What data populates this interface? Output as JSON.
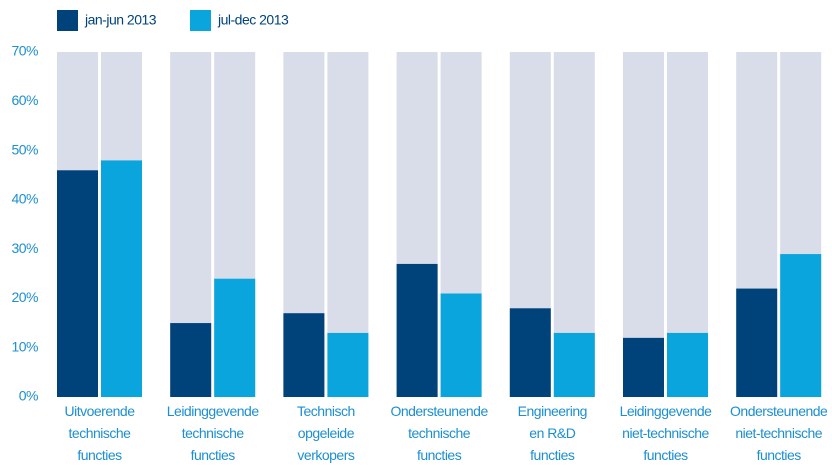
{
  "chart_data": {
    "type": "bar",
    "categories": [
      [
        "Uitvoerende",
        "technische",
        "functies"
      ],
      [
        "Leidinggevende",
        "technische",
        "functies"
      ],
      [
        "Technisch",
        "opgeleide",
        "verkopers"
      ],
      [
        "Ondersteunende",
        "technische",
        "functies"
      ],
      [
        "Engineering",
        "en R&D",
        "functies"
      ],
      [
        "Leidinggevende",
        "niet-technische",
        "functies"
      ],
      [
        "Ondersteunende",
        "niet-technische",
        "functies"
      ]
    ],
    "series": [
      {
        "name": "jan-jun 2013",
        "color": "#00427a",
        "values": [
          46,
          15,
          17,
          27,
          18,
          12,
          22
        ]
      },
      {
        "name": "jul-dec 2013",
        "color": "#0ba5de",
        "values": [
          48,
          24,
          13,
          21,
          13,
          13,
          29
        ]
      }
    ],
    "background_color": "#d9dce9",
    "ylim": [
      0,
      70
    ],
    "yticks": [
      {
        "value": 0,
        "label": "0%"
      },
      {
        "value": 10,
        "label": "10%"
      },
      {
        "value": 20,
        "label": "20%"
      },
      {
        "value": 30,
        "label": "30%"
      },
      {
        "value": 40,
        "label": "40%"
      },
      {
        "value": 50,
        "label": "50%"
      },
      {
        "value": 60,
        "label": "60%"
      },
      {
        "value": 70,
        "label": "70%"
      }
    ],
    "legend": "top-left"
  }
}
